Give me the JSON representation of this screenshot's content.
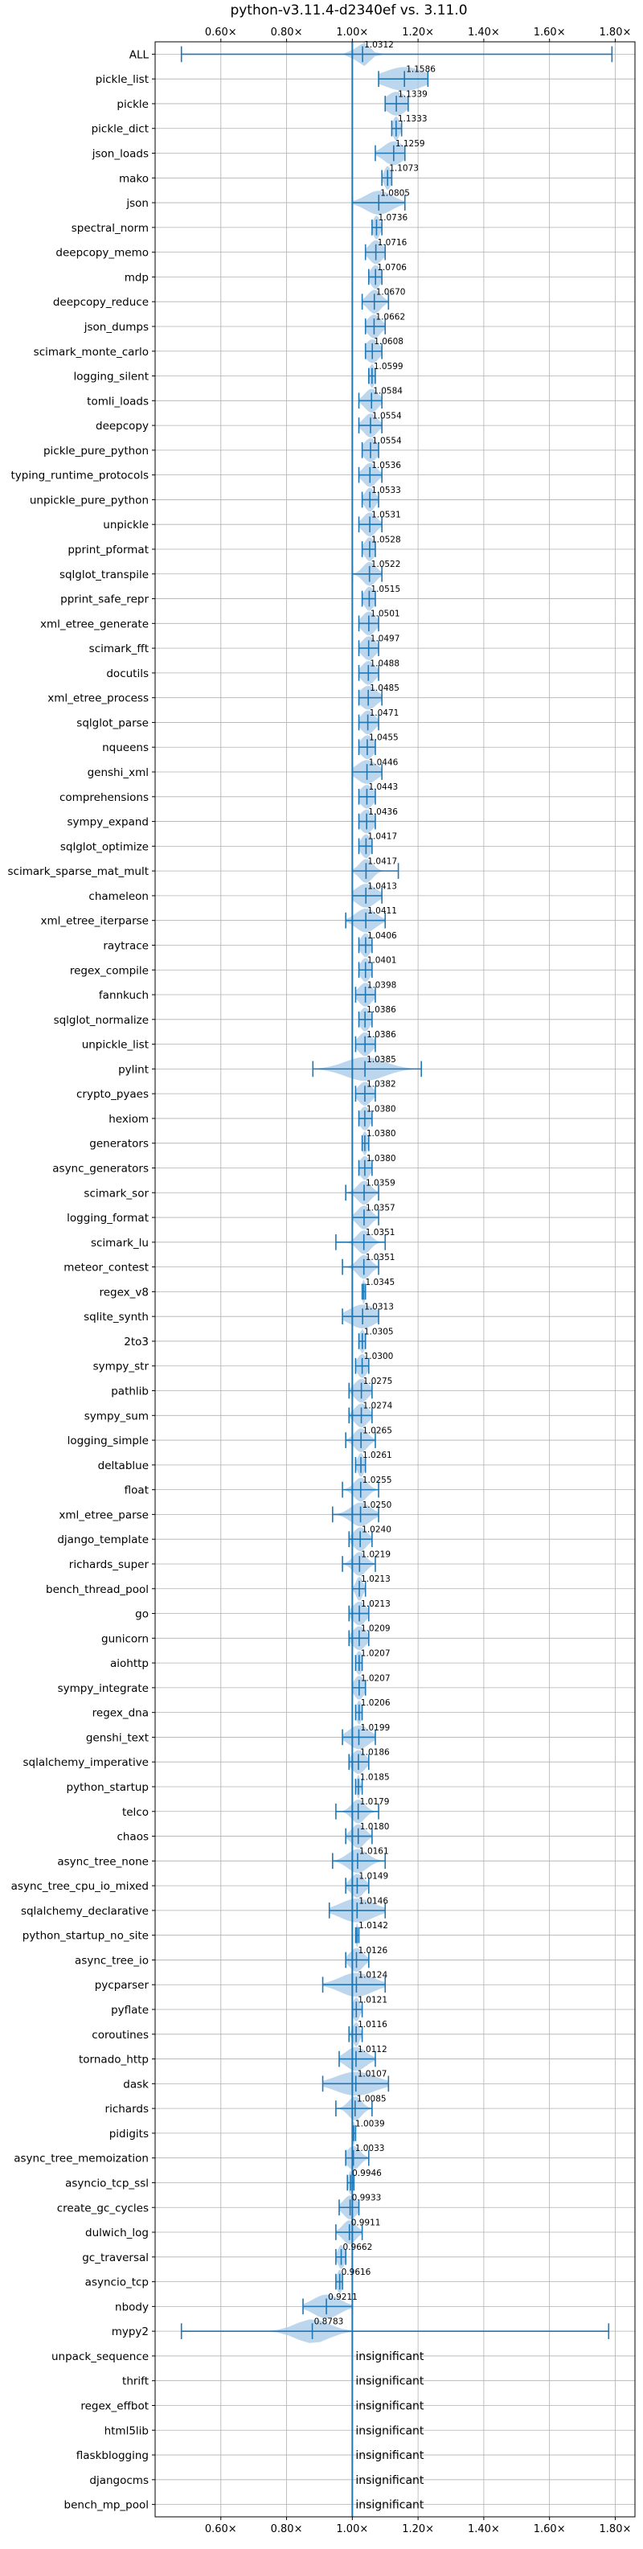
{
  "chart_data": {
    "type": "violin",
    "title": "python-v3.11.4-d2340ef vs. 3.11.0",
    "orientation": "horizontal",
    "xlim": [
      0.4,
      1.86
    ],
    "x_ticks": [
      0.6,
      0.8,
      1.0,
      1.2,
      1.4,
      1.6,
      1.8
    ],
    "x_tick_labels": [
      "0.60×",
      "0.80×",
      "1.00×",
      "1.20×",
      "1.40×",
      "1.60×",
      "1.80×"
    ],
    "x_tick_position": "top-and-bottom",
    "reference_line": 1.0,
    "grid": true,
    "color": "#1f77b4",
    "fill_color": "#a6c8e8",
    "insignificant_label": "insignificant",
    "benchmarks": [
      {
        "name": "ALL",
        "value": 1.0312,
        "label": "1.0312",
        "min": 0.48,
        "max": 1.79,
        "q1": 1.01,
        "q3": 1.05,
        "spread": 0.02
      },
      {
        "name": "pickle_list",
        "value": 1.1586,
        "label": "1.1586",
        "min": 1.08,
        "max": 1.23,
        "spread": 0.06
      },
      {
        "name": "pickle",
        "value": 1.1339,
        "label": "1.1339",
        "min": 1.1,
        "max": 1.17,
        "spread": 0.03
      },
      {
        "name": "pickle_dict",
        "value": 1.1333,
        "label": "1.1333",
        "min": 1.12,
        "max": 1.15,
        "spread": 0.01
      },
      {
        "name": "json_loads",
        "value": 1.1259,
        "label": "1.1259",
        "min": 1.07,
        "max": 1.16,
        "spread": 0.03
      },
      {
        "name": "mako",
        "value": 1.1073,
        "label": "1.1073",
        "min": 1.09,
        "max": 1.12,
        "spread": 0.01
      },
      {
        "name": "json",
        "value": 1.0805,
        "label": "1.0805",
        "min": 1.0,
        "max": 1.16,
        "spread": 0.04
      },
      {
        "name": "spectral_norm",
        "value": 1.0736,
        "label": "1.0736",
        "min": 1.06,
        "max": 1.09,
        "spread": 0.01
      },
      {
        "name": "deepcopy_memo",
        "value": 1.0716,
        "label": "1.0716",
        "min": 1.04,
        "max": 1.1,
        "spread": 0.02
      },
      {
        "name": "mdp",
        "value": 1.0706,
        "label": "1.0706",
        "min": 1.05,
        "max": 1.09,
        "spread": 0.015
      },
      {
        "name": "deepcopy_reduce",
        "value": 1.067,
        "label": "1.0670",
        "min": 1.03,
        "max": 1.11,
        "spread": 0.02
      },
      {
        "name": "json_dumps",
        "value": 1.0662,
        "label": "1.0662",
        "min": 1.04,
        "max": 1.1,
        "spread": 0.02
      },
      {
        "name": "scimark_monte_carlo",
        "value": 1.0608,
        "label": "1.0608",
        "min": 1.04,
        "max": 1.09,
        "spread": 0.02
      },
      {
        "name": "logging_silent",
        "value": 1.0599,
        "label": "1.0599",
        "min": 1.05,
        "max": 1.07,
        "spread": 0.008
      },
      {
        "name": "tomli_loads",
        "value": 1.0584,
        "label": "1.0584",
        "min": 1.02,
        "max": 1.09,
        "spread": 0.02
      },
      {
        "name": "deepcopy",
        "value": 1.0554,
        "label": "1.0554",
        "min": 1.02,
        "max": 1.09,
        "spread": 0.02
      },
      {
        "name": "pickle_pure_python",
        "value": 1.0554,
        "label": "1.0554",
        "min": 1.03,
        "max": 1.08,
        "spread": 0.02
      },
      {
        "name": "typing_runtime_protocols",
        "value": 1.0536,
        "label": "1.0536",
        "min": 1.02,
        "max": 1.09,
        "spread": 0.02
      },
      {
        "name": "unpickle_pure_python",
        "value": 1.0533,
        "label": "1.0533",
        "min": 1.03,
        "max": 1.08,
        "spread": 0.015
      },
      {
        "name": "unpickle",
        "value": 1.0531,
        "label": "1.0531",
        "min": 1.02,
        "max": 1.09,
        "spread": 0.02
      },
      {
        "name": "pprint_pformat",
        "value": 1.0528,
        "label": "1.0528",
        "min": 1.03,
        "max": 1.07,
        "spread": 0.015
      },
      {
        "name": "sqlglot_transpile",
        "value": 1.0522,
        "label": "1.0522",
        "min": 1.0,
        "max": 1.09,
        "spread": 0.02
      },
      {
        "name": "pprint_safe_repr",
        "value": 1.0515,
        "label": "1.0515",
        "min": 1.03,
        "max": 1.07,
        "spread": 0.015
      },
      {
        "name": "xml_etree_generate",
        "value": 1.0501,
        "label": "1.0501",
        "min": 1.02,
        "max": 1.08,
        "spread": 0.02
      },
      {
        "name": "scimark_fft",
        "value": 1.0497,
        "label": "1.0497",
        "min": 1.02,
        "max": 1.08,
        "spread": 0.02
      },
      {
        "name": "docutils",
        "value": 1.0488,
        "label": "1.0488",
        "min": 1.02,
        "max": 1.08,
        "spread": 0.02
      },
      {
        "name": "xml_etree_process",
        "value": 1.0485,
        "label": "1.0485",
        "min": 1.02,
        "max": 1.09,
        "spread": 0.025
      },
      {
        "name": "sqlglot_parse",
        "value": 1.0471,
        "label": "1.0471",
        "min": 1.02,
        "max": 1.08,
        "spread": 0.02
      },
      {
        "name": "nqueens",
        "value": 1.0455,
        "label": "1.0455",
        "min": 1.02,
        "max": 1.07,
        "spread": 0.02
      },
      {
        "name": "genshi_xml",
        "value": 1.0446,
        "label": "1.0446",
        "min": 1.0,
        "max": 1.09,
        "spread": 0.03
      },
      {
        "name": "comprehensions",
        "value": 1.0443,
        "label": "1.0443",
        "min": 1.02,
        "max": 1.07,
        "spread": 0.02
      },
      {
        "name": "sympy_expand",
        "value": 1.0436,
        "label": "1.0436",
        "min": 1.02,
        "max": 1.07,
        "spread": 0.02
      },
      {
        "name": "sqlglot_optimize",
        "value": 1.0417,
        "label": "1.0417",
        "min": 1.02,
        "max": 1.06,
        "spread": 0.015
      },
      {
        "name": "scimark_sparse_mat_mult",
        "value": 1.0417,
        "label": "1.0417",
        "min": 1.0,
        "max": 1.14,
        "spread": 0.02
      },
      {
        "name": "chameleon",
        "value": 1.0413,
        "label": "1.0413",
        "min": 1.0,
        "max": 1.09,
        "spread": 0.03
      },
      {
        "name": "xml_etree_iterparse",
        "value": 1.0411,
        "label": "1.0411",
        "min": 0.98,
        "max": 1.1,
        "spread": 0.03
      },
      {
        "name": "raytrace",
        "value": 1.0406,
        "label": "1.0406",
        "min": 1.02,
        "max": 1.06,
        "spread": 0.015
      },
      {
        "name": "regex_compile",
        "value": 1.0401,
        "label": "1.0401",
        "min": 1.02,
        "max": 1.06,
        "spread": 0.015
      },
      {
        "name": "fannkuch",
        "value": 1.0398,
        "label": "1.0398",
        "min": 1.01,
        "max": 1.07,
        "spread": 0.02
      },
      {
        "name": "sqlglot_normalize",
        "value": 1.0386,
        "label": "1.0386",
        "min": 1.02,
        "max": 1.06,
        "spread": 0.015
      },
      {
        "name": "unpickle_list",
        "value": 1.0386,
        "label": "1.0386",
        "min": 1.01,
        "max": 1.07,
        "spread": 0.02
      },
      {
        "name": "pylint",
        "value": 1.0385,
        "label": "1.0385",
        "min": 0.88,
        "max": 1.21,
        "spread": 0.06
      },
      {
        "name": "crypto_pyaes",
        "value": 1.0382,
        "label": "1.0382",
        "min": 1.01,
        "max": 1.07,
        "spread": 0.02
      },
      {
        "name": "hexiom",
        "value": 1.038,
        "label": "1.0380",
        "min": 1.02,
        "max": 1.06,
        "spread": 0.015
      },
      {
        "name": "generators",
        "value": 1.038,
        "label": "1.0380",
        "min": 1.03,
        "max": 1.05,
        "spread": 0.008
      },
      {
        "name": "async_generators",
        "value": 1.038,
        "label": "1.0380",
        "min": 1.02,
        "max": 1.06,
        "spread": 0.015
      },
      {
        "name": "scimark_sor",
        "value": 1.0359,
        "label": "1.0359",
        "min": 0.98,
        "max": 1.08,
        "spread": 0.02
      },
      {
        "name": "logging_format",
        "value": 1.0357,
        "label": "1.0357",
        "min": 1.0,
        "max": 1.08,
        "spread": 0.02
      },
      {
        "name": "scimark_lu",
        "value": 1.0351,
        "label": "1.0351",
        "min": 0.95,
        "max": 1.1,
        "spread": 0.02
      },
      {
        "name": "meteor_contest",
        "value": 1.0351,
        "label": "1.0351",
        "min": 0.97,
        "max": 1.08,
        "spread": 0.02
      },
      {
        "name": "regex_v8",
        "value": 1.0345,
        "label": "1.0345",
        "min": 1.03,
        "max": 1.04,
        "spread": 0.005
      },
      {
        "name": "sqlite_synth",
        "value": 1.0313,
        "label": "1.0313",
        "min": 0.97,
        "max": 1.08,
        "spread": 0.04
      },
      {
        "name": "2to3",
        "value": 1.0305,
        "label": "1.0305",
        "min": 1.02,
        "max": 1.04,
        "spread": 0.008
      },
      {
        "name": "sympy_str",
        "value": 1.03,
        "label": "1.0300",
        "min": 1.01,
        "max": 1.05,
        "spread": 0.015
      },
      {
        "name": "pathlib",
        "value": 1.0275,
        "label": "1.0275",
        "min": 0.99,
        "max": 1.06,
        "spread": 0.02
      },
      {
        "name": "sympy_sum",
        "value": 1.0274,
        "label": "1.0274",
        "min": 0.99,
        "max": 1.06,
        "spread": 0.02
      },
      {
        "name": "logging_simple",
        "value": 1.0265,
        "label": "1.0265",
        "min": 0.98,
        "max": 1.07,
        "spread": 0.02
      },
      {
        "name": "deltablue",
        "value": 1.0261,
        "label": "1.0261",
        "min": 1.01,
        "max": 1.04,
        "spread": 0.01
      },
      {
        "name": "float",
        "value": 1.0255,
        "label": "1.0255",
        "min": 0.97,
        "max": 1.08,
        "spread": 0.02
      },
      {
        "name": "xml_etree_parse",
        "value": 1.025,
        "label": "1.0250",
        "min": 0.94,
        "max": 1.08,
        "spread": 0.03
      },
      {
        "name": "django_template",
        "value": 1.024,
        "label": "1.0240",
        "min": 0.99,
        "max": 1.06,
        "spread": 0.02
      },
      {
        "name": "richards_super",
        "value": 1.0219,
        "label": "1.0219",
        "min": 0.97,
        "max": 1.07,
        "spread": 0.02
      },
      {
        "name": "bench_thread_pool",
        "value": 1.0213,
        "label": "1.0213",
        "min": 1.0,
        "max": 1.04,
        "spread": 0.01
      },
      {
        "name": "go",
        "value": 1.0213,
        "label": "1.0213",
        "min": 0.99,
        "max": 1.05,
        "spread": 0.02
      },
      {
        "name": "gunicorn",
        "value": 1.0209,
        "label": "1.0209",
        "min": 0.99,
        "max": 1.05,
        "spread": 0.02
      },
      {
        "name": "aiohttp",
        "value": 1.0207,
        "label": "1.0207",
        "min": 1.01,
        "max": 1.03,
        "spread": 0.01
      },
      {
        "name": "sympy_integrate",
        "value": 1.0207,
        "label": "1.0207",
        "min": 1.0,
        "max": 1.04,
        "spread": 0.015
      },
      {
        "name": "regex_dna",
        "value": 1.0206,
        "label": "1.0206",
        "min": 1.01,
        "max": 1.03,
        "spread": 0.008
      },
      {
        "name": "genshi_text",
        "value": 1.0199,
        "label": "1.0199",
        "min": 0.97,
        "max": 1.07,
        "spread": 0.03
      },
      {
        "name": "sqlalchemy_imperative",
        "value": 1.0186,
        "label": "1.0186",
        "min": 0.99,
        "max": 1.05,
        "spread": 0.02
      },
      {
        "name": "python_startup",
        "value": 1.0185,
        "label": "1.0185",
        "min": 1.01,
        "max": 1.03,
        "spread": 0.005
      },
      {
        "name": "telco",
        "value": 1.0179,
        "label": "1.0179",
        "min": 0.95,
        "max": 1.08,
        "spread": 0.02
      },
      {
        "name": "chaos",
        "value": 1.018,
        "label": "1.0180",
        "min": 0.98,
        "max": 1.06,
        "spread": 0.02
      },
      {
        "name": "async_tree_none",
        "value": 1.0161,
        "label": "1.0161",
        "min": 0.94,
        "max": 1.1,
        "spread": 0.03
      },
      {
        "name": "async_tree_cpu_io_mixed",
        "value": 1.0149,
        "label": "1.0149",
        "min": 0.98,
        "max": 1.05,
        "spread": 0.02
      },
      {
        "name": "sqlalchemy_declarative",
        "value": 1.0146,
        "label": "1.0146",
        "min": 0.93,
        "max": 1.1,
        "spread": 0.05
      },
      {
        "name": "python_startup_no_site",
        "value": 1.0142,
        "label": "1.0142",
        "min": 1.01,
        "max": 1.02,
        "spread": 0.004
      },
      {
        "name": "async_tree_io",
        "value": 1.0126,
        "label": "1.0126",
        "min": 0.98,
        "max": 1.05,
        "spread": 0.02
      },
      {
        "name": "pycparser",
        "value": 1.0124,
        "label": "1.0124",
        "min": 0.91,
        "max": 1.1,
        "spread": 0.05
      },
      {
        "name": "pyflate",
        "value": 1.0121,
        "label": "1.0121",
        "min": 1.0,
        "max": 1.03,
        "spread": 0.01
      },
      {
        "name": "coroutines",
        "value": 1.0116,
        "label": "1.0116",
        "min": 0.99,
        "max": 1.03,
        "spread": 0.01
      },
      {
        "name": "tornado_http",
        "value": 1.0112,
        "label": "1.0112",
        "min": 0.96,
        "max": 1.07,
        "spread": 0.03
      },
      {
        "name": "dask",
        "value": 1.0107,
        "label": "1.0107",
        "min": 0.91,
        "max": 1.11,
        "spread": 0.06
      },
      {
        "name": "richards",
        "value": 1.0085,
        "label": "1.0085",
        "min": 0.95,
        "max": 1.06,
        "spread": 0.02
      },
      {
        "name": "pidigits",
        "value": 1.0039,
        "label": "1.0039",
        "min": 1.0,
        "max": 1.01,
        "spread": 0.004
      },
      {
        "name": "async_tree_memoization",
        "value": 1.0033,
        "label": "1.0033",
        "min": 0.98,
        "max": 1.05,
        "spread": 0.02
      },
      {
        "name": "asyncio_tcp_ssl",
        "value": 0.9946,
        "label": "0.9946",
        "min": 0.985,
        "max": 1.005,
        "spread": 0.006
      },
      {
        "name": "create_gc_cycles",
        "value": 0.9933,
        "label": "0.9933",
        "min": 0.96,
        "max": 1.02,
        "spread": 0.02
      },
      {
        "name": "dulwich_log",
        "value": 0.9911,
        "label": "0.9911",
        "min": 0.95,
        "max": 1.03,
        "spread": 0.02
      },
      {
        "name": "gc_traversal",
        "value": 0.9662,
        "label": "0.9662",
        "min": 0.95,
        "max": 0.98,
        "spread": 0.01
      },
      {
        "name": "asyncio_tcp",
        "value": 0.9616,
        "label": "0.9616",
        "min": 0.95,
        "max": 0.97,
        "spread": 0.008
      },
      {
        "name": "nbody",
        "value": 0.9211,
        "label": "0.9211",
        "min": 0.85,
        "max": 1.0,
        "spread": 0.04
      },
      {
        "name": "mypy2",
        "value": 0.8783,
        "label": "0.8783",
        "min": 0.48,
        "max": 1.78,
        "spread": 0.05
      },
      {
        "name": "unpack_sequence",
        "insignificant": true
      },
      {
        "name": "thrift",
        "insignificant": true
      },
      {
        "name": "regex_effbot",
        "insignificant": true
      },
      {
        "name": "html5lib",
        "insignificant": true
      },
      {
        "name": "flaskblogging",
        "insignificant": true
      },
      {
        "name": "djangocms",
        "insignificant": true
      },
      {
        "name": "bench_mp_pool",
        "insignificant": true
      }
    ]
  }
}
